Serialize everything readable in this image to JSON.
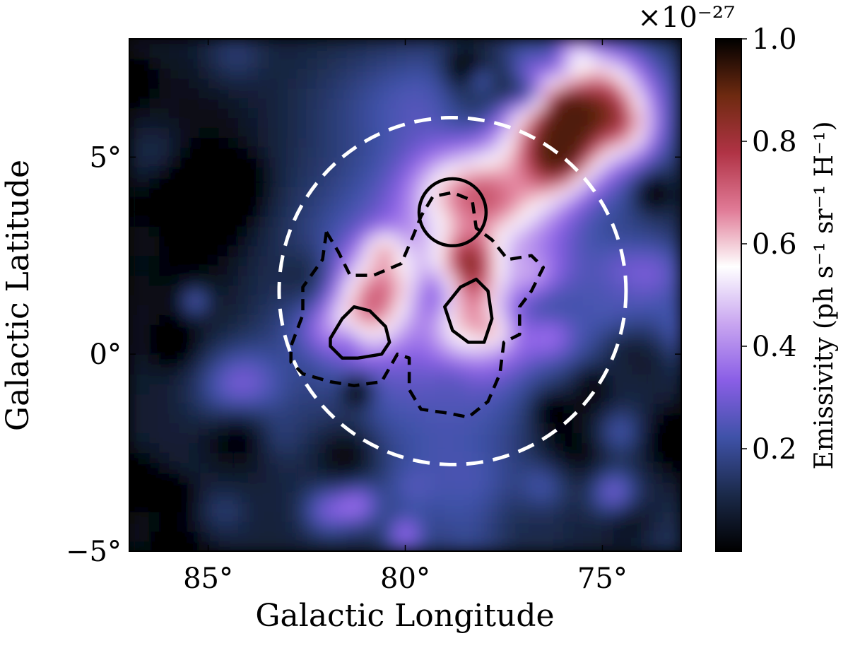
{
  "chart_data": {
    "type": "heatmap",
    "title": "",
    "xlabel": "Galactic Longitude",
    "ylabel": "Galactic Latitude",
    "xlim": [
      87,
      73
    ],
    "ylim": [
      -5,
      8
    ],
    "x_ticks": [
      {
        "value": 85,
        "label": "85°"
      },
      {
        "value": 80,
        "label": "80°"
      },
      {
        "value": 75,
        "label": "75°"
      }
    ],
    "y_ticks": [
      {
        "value": 5,
        "label": "5°"
      },
      {
        "value": 0,
        "label": "0°"
      },
      {
        "value": -5,
        "label": "−5°"
      }
    ],
    "colorbar": {
      "label": "Emissivity (ph s⁻¹ sr⁻¹ H⁻¹)",
      "multiplier_label": "×10⁻²⁷",
      "range": [
        0.0,
        1.0
      ],
      "ticks": [
        {
          "value": 1.0,
          "label": "1.0"
        },
        {
          "value": 0.8,
          "label": "0.8"
        },
        {
          "value": 0.6,
          "label": "0.6"
        },
        {
          "value": 0.4,
          "label": "0.4"
        },
        {
          "value": 0.2,
          "label": "0.2"
        }
      ],
      "colormap": [
        "#000000",
        "#1b2a4a",
        "#3f52a8",
        "#8a5ee6",
        "#c9a6f0",
        "#ffffff",
        "#e07a96",
        "#b03345",
        "#6e2a10",
        "#000000"
      ]
    },
    "overlays": [
      {
        "type": "circle",
        "style": "dashed",
        "color": "#ffffff",
        "center_l": 78.8,
        "center_b": 1.6,
        "radius_deg": 4.4
      },
      {
        "type": "circle",
        "style": "solid",
        "color": "#000000",
        "center_l": 78.8,
        "center_b": 3.6,
        "radius_deg": 0.85
      },
      {
        "type": "contour",
        "style": "solid",
        "color": "#000000",
        "points": [
          [
            81.9,
            0.4
          ],
          [
            81.6,
            0.9
          ],
          [
            81.3,
            1.2
          ],
          [
            80.9,
            1.1
          ],
          [
            80.5,
            0.7
          ],
          [
            80.4,
            0.3
          ],
          [
            80.6,
            0.0
          ],
          [
            81.2,
            -0.1
          ],
          [
            81.6,
            -0.1
          ],
          [
            81.9,
            0.2
          ],
          [
            81.9,
            0.4
          ]
        ]
      },
      {
        "type": "contour",
        "style": "solid",
        "color": "#000000",
        "points": [
          [
            79.0,
            1.2
          ],
          [
            78.6,
            1.7
          ],
          [
            78.2,
            1.9
          ],
          [
            77.9,
            1.6
          ],
          [
            77.8,
            0.9
          ],
          [
            78.0,
            0.3
          ],
          [
            78.4,
            0.3
          ],
          [
            78.8,
            0.6
          ],
          [
            79.0,
            1.2
          ]
        ]
      },
      {
        "type": "contour",
        "style": "dashed",
        "color": "#000000",
        "points": [
          [
            82.0,
            3.1
          ],
          [
            81.7,
            2.6
          ],
          [
            81.4,
            2.0
          ],
          [
            80.8,
            2.0
          ],
          [
            80.1,
            2.3
          ],
          [
            79.8,
            3.0
          ],
          [
            79.6,
            3.5
          ],
          [
            79.3,
            4.0
          ],
          [
            78.8,
            4.1
          ],
          [
            78.3,
            3.9
          ],
          [
            78.2,
            3.2
          ],
          [
            77.8,
            2.9
          ],
          [
            77.4,
            2.4
          ],
          [
            76.8,
            2.5
          ],
          [
            76.5,
            2.2
          ],
          [
            76.8,
            1.6
          ],
          [
            77.1,
            1.2
          ],
          [
            77.1,
            0.5
          ],
          [
            77.5,
            0.3
          ],
          [
            77.6,
            -0.5
          ],
          [
            77.9,
            -1.2
          ],
          [
            78.4,
            -1.6
          ],
          [
            78.9,
            -1.5
          ],
          [
            79.6,
            -1.4
          ],
          [
            79.9,
            -0.9
          ],
          [
            79.9,
            -0.1
          ],
          [
            80.2,
            0.0
          ],
          [
            80.6,
            -0.7
          ],
          [
            81.3,
            -0.8
          ],
          [
            81.9,
            -0.7
          ],
          [
            82.6,
            -0.5
          ],
          [
            82.9,
            -0.2
          ],
          [
            82.9,
            0.2
          ],
          [
            82.6,
            1.0
          ],
          [
            82.6,
            1.7
          ],
          [
            82.1,
            2.4
          ],
          [
            82.0,
            3.1
          ]
        ]
      }
    ],
    "legend": "none",
    "grid": false
  }
}
